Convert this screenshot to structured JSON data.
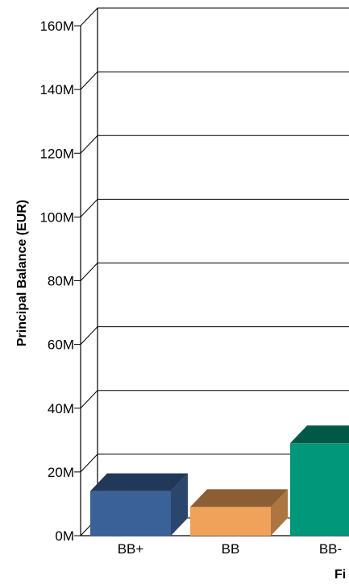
{
  "chart_data": {
    "type": "bar",
    "title": "",
    "xlabel": "Fi",
    "ylabel": "Principal Balance (EUR)",
    "ylim": [
      0,
      160
    ],
    "y_tick_values": [
      0,
      20,
      40,
      60,
      80,
      100,
      120,
      140,
      160
    ],
    "y_tick_labels": [
      "0M",
      "20M",
      "40M",
      "60M",
      "80M",
      "100M",
      "120M",
      "140M",
      "160M"
    ],
    "categories": [
      "BB+",
      "BB",
      "BB-"
    ],
    "values": [
      14,
      9,
      29
    ],
    "bar_colors": [
      "#3a6198",
      "#f0a25a",
      "#00977a"
    ],
    "grid": true,
    "style": "3d"
  }
}
